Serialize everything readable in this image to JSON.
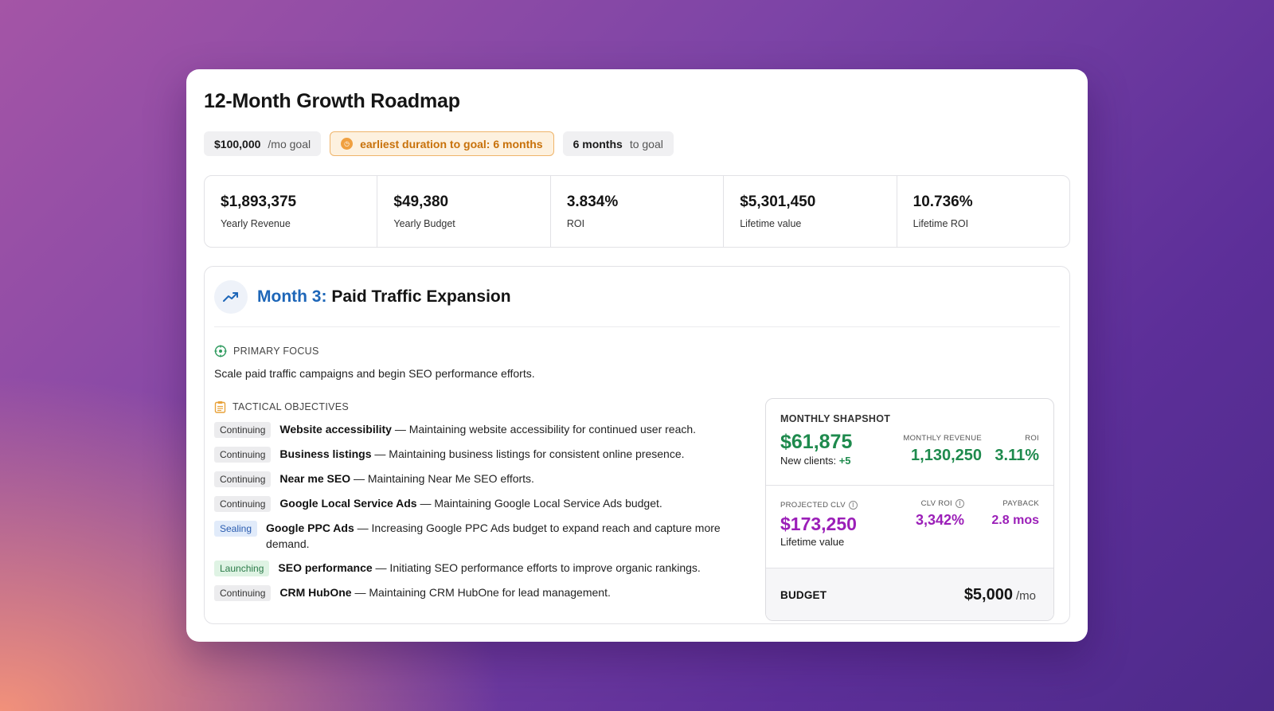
{
  "title": "12-Month Growth Roadmap",
  "pills": {
    "goal_value": "$100,000",
    "goal_suffix": "/mo goal",
    "earliest_text": "earliest duration to goal: 6 months",
    "months_value": "6 months",
    "months_suffix": "to goal"
  },
  "stats": [
    {
      "value": "$1,893,375",
      "label": "Yearly Revenue"
    },
    {
      "value": "$49,380",
      "label": "Yearly Budget"
    },
    {
      "value": "3.834%",
      "label": "ROI"
    },
    {
      "value": "$5,301,450",
      "label": "Lifetime value"
    },
    {
      "value": "10.736%",
      "label": "Lifetime ROI"
    }
  ],
  "month": {
    "number_label": "Month 3:",
    "name": "Paid Traffic Expansion",
    "primary_focus_label": "PRIMARY FOCUS",
    "primary_focus_text": "Scale paid traffic campaigns and begin SEO performance efforts.",
    "tactical_label": "TACTICAL OBJECTIVES",
    "objectives": [
      {
        "tag": "Continuing",
        "name": "Website accessibility",
        "desc": " — Maintaining website accessibility for continued user reach."
      },
      {
        "tag": "Continuing",
        "name": "Business listings",
        "desc": " — Maintaining business listings for consistent online presence."
      },
      {
        "tag": "Continuing",
        "name": "Near me SEO",
        "desc": " — Maintaining Near Me SEO efforts."
      },
      {
        "tag": "Continuing",
        "name": "Google Local Service Ads",
        "desc": " — Maintaining Google Local Service Ads budget."
      },
      {
        "tag": "Sealing",
        "name": "Google PPC Ads",
        "desc": " — Increasing Google PPC Ads budget to expand reach and capture more demand."
      },
      {
        "tag": "Launching",
        "name": "SEO performance",
        "desc": " — Initiating SEO performance efforts to improve organic rankings."
      },
      {
        "tag": "Continuing",
        "name": "CRM HubOne",
        "desc": " — Maintaining CRM HubOne for lead management."
      }
    ]
  },
  "snapshot": {
    "title": "MONTHLY SHAPSHOT",
    "monthly_value": "$61,875",
    "new_clients_label": "New clients:",
    "new_clients_value": "+5",
    "monthly_revenue_label": "MONTHLY REVENUE",
    "monthly_revenue_value": "1,130,250",
    "roi_label": "ROI",
    "roi_value": "3.11%",
    "projected_clv_label": "PROJECTED CLV",
    "projected_clv_value": "$173,250",
    "lifetime_label": "Lifetime value",
    "clv_roi_label": "CLV ROI",
    "clv_roi_value": "3,342%",
    "payback_label": "PAYBACK",
    "payback_value": "2.8 mos",
    "budget_label": "BUDGET",
    "budget_value": "$5,000",
    "budget_unit": "/mo"
  },
  "colors": {
    "accent_blue": "#1d66b8",
    "green": "#1e8a4d",
    "purple": "#9b1fb8",
    "orange": "#c8710a"
  }
}
